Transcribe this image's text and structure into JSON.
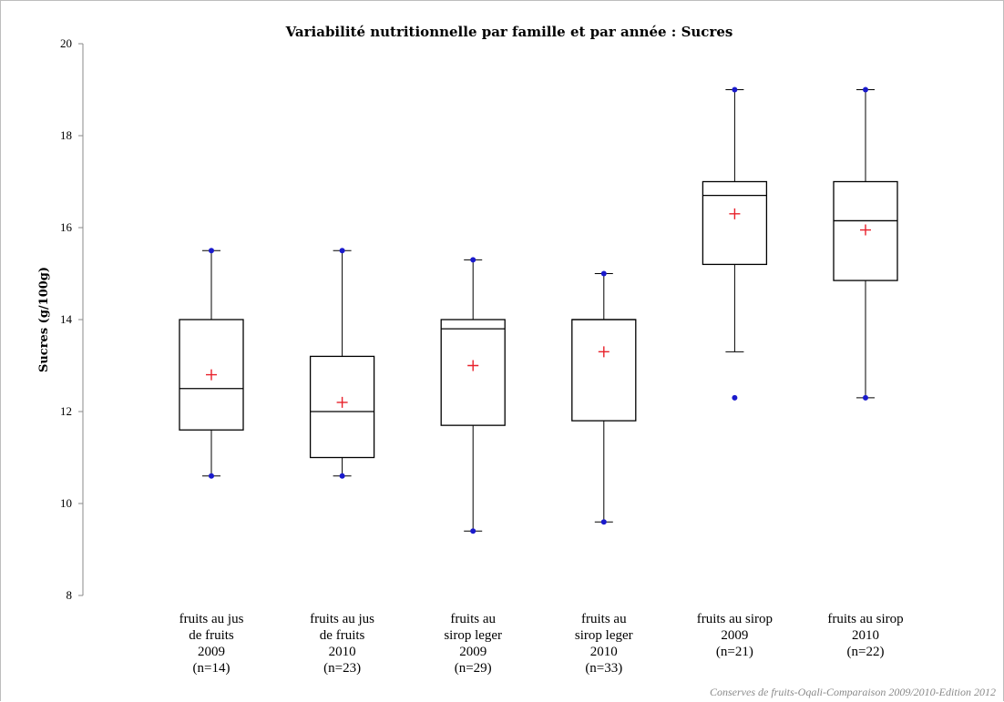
{
  "chart_data": {
    "type": "boxplot",
    "title": "Variabilité nutritionnelle par famille et par année : Sucres",
    "ylabel": "Sucres (g/100g)",
    "xlabel": "",
    "ylim": [
      8,
      20
    ],
    "yticks": [
      8,
      10,
      12,
      14,
      16,
      18,
      20
    ],
    "grid": false,
    "source": "Conserves de fruits-Oqali-Comparaison 2009/2010-Edition  2012",
    "categories": [
      {
        "lines": [
          "fruits au jus",
          "de fruits",
          "2009",
          "(n=14)"
        ],
        "whisker_low": 10.6,
        "q1": 11.6,
        "median": 12.5,
        "q3": 14.0,
        "whisker_high": 15.5,
        "mean": 12.8,
        "points": [
          10.6,
          15.5
        ]
      },
      {
        "lines": [
          "fruits au jus",
          "de fruits",
          "2010",
          "(n=23)"
        ],
        "whisker_low": 10.6,
        "q1": 11.0,
        "median": 12.0,
        "q3": 13.2,
        "whisker_high": 15.5,
        "mean": 12.2,
        "points": [
          10.6,
          15.5
        ]
      },
      {
        "lines": [
          "fruits au",
          "sirop leger",
          "2009",
          "(n=29)"
        ],
        "whisker_low": 9.4,
        "q1": 11.7,
        "median": 13.8,
        "q3": 14.0,
        "whisker_high": 15.3,
        "mean": 13.0,
        "points": [
          9.4,
          15.3
        ]
      },
      {
        "lines": [
          "fruits au",
          "sirop leger",
          "2010",
          "(n=33)"
        ],
        "whisker_low": 9.6,
        "q1": 11.8,
        "median": 14.0,
        "q3": 14.0,
        "whisker_high": 15.0,
        "mean": 13.3,
        "points": [
          9.6,
          15.0
        ]
      },
      {
        "lines": [
          "fruits au sirop",
          "2009",
          "(n=21)"
        ],
        "whisker_low": 13.3,
        "q1": 15.2,
        "median": 16.7,
        "q3": 17.0,
        "whisker_high": 19.0,
        "mean": 16.3,
        "points": [
          12.3,
          19.0
        ]
      },
      {
        "lines": [
          "fruits au sirop",
          "2010",
          "(n=22)"
        ],
        "whisker_low": 12.3,
        "q1": 14.85,
        "median": 16.15,
        "q3": 17.0,
        "whisker_high": 19.0,
        "mean": 15.95,
        "points": [
          12.3,
          19.0
        ]
      }
    ],
    "colors": {
      "box": "#000000",
      "mean": "#e8202a",
      "points": "#1a1acc"
    }
  }
}
